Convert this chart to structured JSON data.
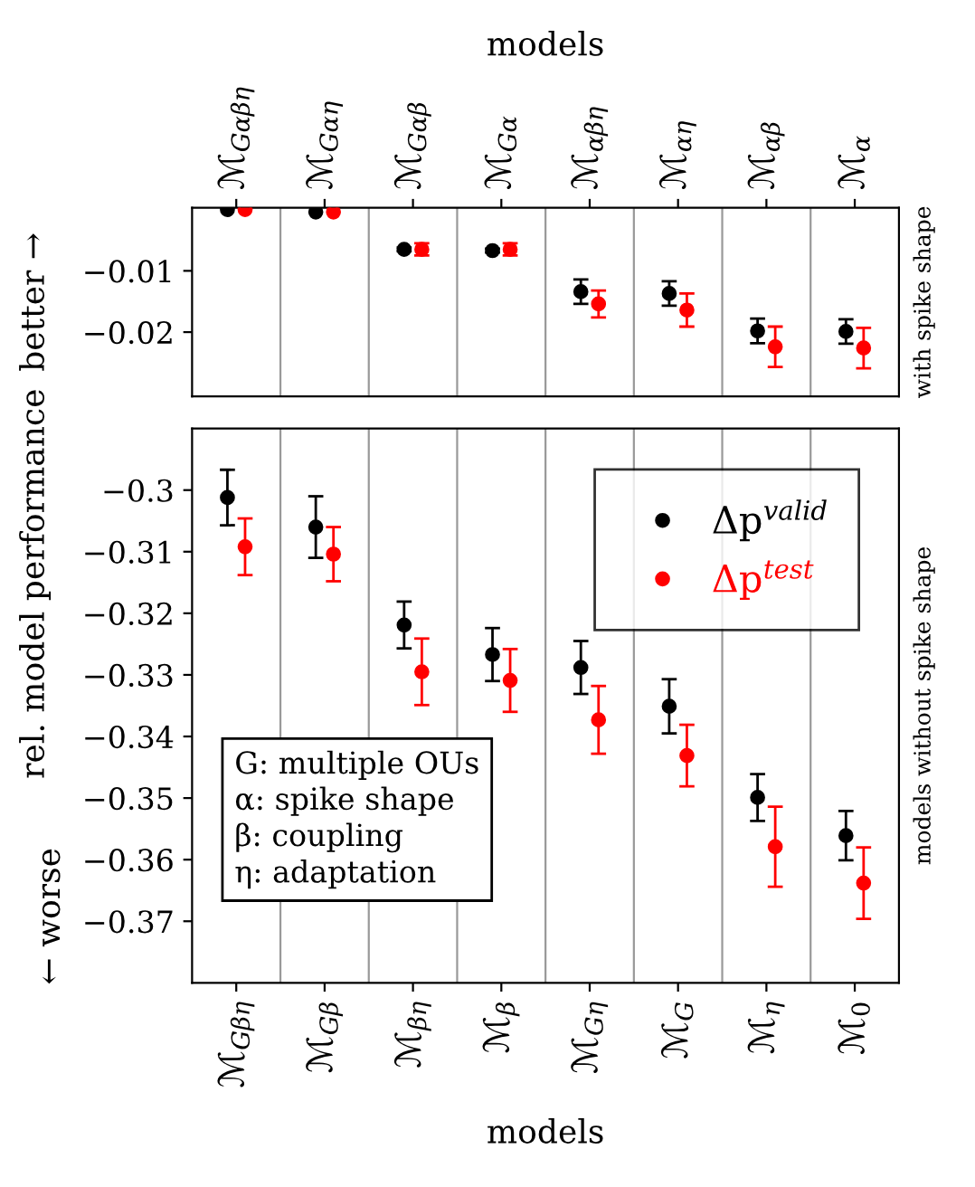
{
  "chart_data": [
    {
      "type": "scatter",
      "x2label": "models",
      "ylabel": "better →",
      "y2label": "with spike shape",
      "categories": [
        "ℳ$_{Gαβη}$",
        "ℳ$_{Gαη}$",
        "ℳ$_{Gαβ}$",
        "ℳ$_{Gα}$",
        "ℳ$_{αβη}$",
        "ℳ$_{αη}$",
        "ℳ$_{αβ}$",
        "ℳ$_{α}$"
      ],
      "ylim": [
        -0.0305,
        0.0003
      ],
      "yticks": [
        -0.01,
        -0.02
      ],
      "grid": "x",
      "marker": "circle",
      "legend": false,
      "series": [
        {
          "color": "#000000",
          "values": [
            0.0,
            -0.0004,
            -0.0065,
            -0.0067,
            -0.0134,
            -0.0137,
            -0.0198,
            -0.0199
          ],
          "errors": [
            null,
            null,
            0.0003,
            0.0003,
            0.002,
            0.002,
            0.002,
            0.002
          ]
        },
        {
          "color": "#ff0000",
          "values": [
            0.0,
            -0.0004,
            -0.0065,
            -0.0065,
            -0.0154,
            -0.0164,
            -0.0224,
            -0.0226
          ],
          "errors": [
            null,
            null,
            0.001,
            0.001,
            0.0022,
            0.0027,
            0.0033,
            0.0033
          ]
        }
      ]
    },
    {
      "type": "scatter",
      "xlabel": "models",
      "ylabel": "rel. model performance",
      "y2label": "models without spike shape",
      "categories": [
        "ℳ$_{Gβη}$",
        "ℳ$_{Gβ}$",
        "ℳ$_{βη}$",
        "ℳ$_{β}$",
        "ℳ$_{Gη}$",
        "ℳ$_{G}$",
        "ℳ$_{η}$",
        "ℳ$_{0}$"
      ],
      "ylim": [
        -0.38,
        -0.29
      ],
      "yticks": [
        -0.3,
        -0.31,
        -0.32,
        -0.33,
        -0.34,
        -0.35,
        -0.36,
        -0.37
      ],
      "grid": "x",
      "marker": "circle",
      "legend": "top right",
      "annotations": [
        "G: multiple OUs\nα: spike shape\nβ: coupling\nη: adaptation",
        "← worse"
      ],
      "series": [
        {
          "name": "Δp$^{valid}$",
          "color": "#000000",
          "values": [
            -0.3012,
            -0.306,
            -0.3219,
            -0.3267,
            -0.3288,
            -0.3351,
            -0.3499,
            -0.3561
          ],
          "errors": [
            0.0045,
            0.005,
            0.0038,
            0.0043,
            0.0043,
            0.0044,
            0.0038,
            0.004
          ]
        },
        {
          "name": "Δp$^{test}$",
          "color": "#ff0000",
          "values": [
            -0.3092,
            -0.3104,
            -0.3295,
            -0.3309,
            -0.3373,
            -0.3431,
            -0.3579,
            -0.3638
          ],
          "errors": [
            0.0046,
            0.0044,
            0.0054,
            0.0051,
            0.0055,
            0.005,
            0.0065,
            0.0058
          ]
        }
      ]
    }
  ]
}
